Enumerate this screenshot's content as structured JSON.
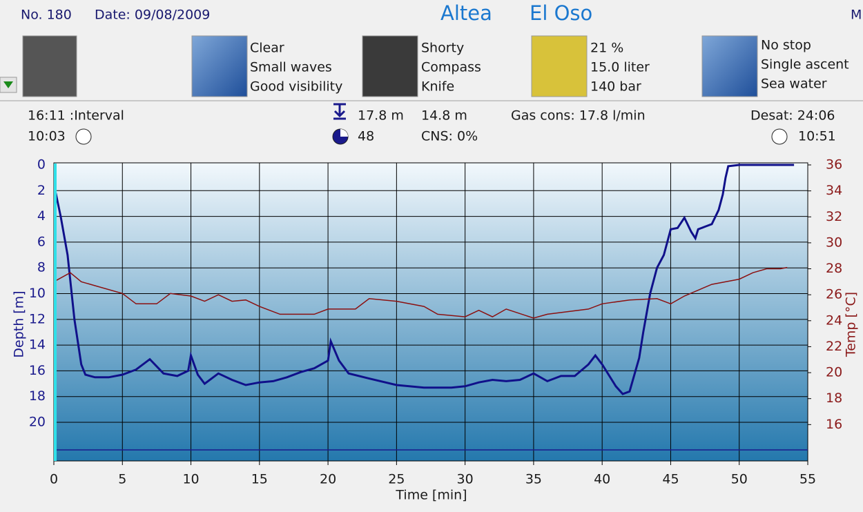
{
  "header": {
    "number": "No. 180",
    "date": "Date: 09/08/2009",
    "site": "Altea",
    "location": "El Oso",
    "cut": "M"
  },
  "equipment": {
    "weather": [
      "Clear",
      "Small waves",
      "Good visibility"
    ],
    "gear": [
      "Shorty",
      "Compass",
      "Knife"
    ],
    "gas": [
      "21 %",
      "15.0 liter",
      "140 bar"
    ],
    "dive_type": [
      "No stop",
      "Single ascent",
      "Sea water"
    ]
  },
  "stats": {
    "interval": "16:11  :Interval",
    "duration": "10:03",
    "max_depth": "17.8 m",
    "avg_depth": "14.8 m",
    "dive_count": "48",
    "cns": "CNS:  0%",
    "gas_cons": "Gas cons: 17.8 l/min",
    "desat": "Desat: 24:06",
    "time": "10:51"
  },
  "chart_data": {
    "type": "line",
    "xlabel": "Time [min]",
    "ylabel": "Depth [m]",
    "y2label": "Temp [°C]",
    "xlim": [
      0,
      55
    ],
    "xticks": [
      0,
      5,
      10,
      15,
      20,
      25,
      30,
      35,
      40,
      45,
      50,
      55
    ],
    "ylim": [
      0,
      23
    ],
    "invert_y": true,
    "yticks": [
      0,
      2,
      4,
      6,
      8,
      10,
      12,
      14,
      16,
      18,
      20
    ],
    "y2lim": [
      13.2,
      36
    ],
    "y2ticks": [
      16,
      18,
      20,
      22,
      24,
      26,
      28,
      30,
      32,
      34,
      36
    ],
    "grid": true,
    "series": [
      {
        "color": "#10108a",
        "x": [
          0.1,
          0.5,
          1.0,
          1.5,
          2.0,
          2.3,
          3,
          4,
          5,
          6,
          7,
          8,
          9,
          9.8,
          10,
          10.5,
          11,
          12,
          13,
          14,
          15,
          16,
          17,
          18,
          19,
          20,
          20.2,
          20.8,
          21.5,
          23,
          25,
          27,
          29,
          30,
          31,
          32,
          33,
          34,
          35,
          36,
          37,
          38,
          39,
          39.5,
          40,
          41,
          41.5,
          42,
          42.7,
          43,
          43.5,
          44,
          44.5,
          45,
          45.5,
          46,
          46.5,
          46.8,
          47,
          47.5,
          48,
          48.5,
          48.8,
          49,
          49.2,
          50,
          53,
          54
        ],
        "values": [
          2,
          4,
          7,
          12,
          15.5,
          16.3,
          16.5,
          16.5,
          16.3,
          15.9,
          15.1,
          16.2,
          16.4,
          16,
          14.8,
          16.3,
          17,
          16.2,
          16.7,
          17.1,
          16.9,
          16.8,
          16.5,
          16.1,
          15.8,
          15.2,
          13.7,
          15.2,
          16.2,
          16.6,
          17.1,
          17.3,
          17.3,
          17.2,
          16.9,
          16.7,
          16.8,
          16.7,
          16.2,
          16.8,
          16.4,
          16.4,
          15.5,
          14.8,
          15.5,
          17.2,
          17.8,
          17.6,
          15,
          13,
          10,
          8,
          7,
          5,
          4.9,
          4.1,
          5.2,
          5.7,
          5,
          4.8,
          4.6,
          3.5,
          2.3,
          1,
          0.1,
          0,
          0,
          0
        ]
      },
      {
        "axis": "y2",
        "color": "#8b1010",
        "x": [
          0,
          1.2,
          2,
          3,
          5,
          6,
          7.5,
          8.5,
          10,
          11,
          12,
          13,
          14,
          15,
          16.5,
          19,
          20,
          22,
          23,
          25,
          27,
          28,
          30,
          31,
          32,
          33,
          35,
          36,
          39,
          40,
          42,
          44,
          45,
          46,
          48,
          50,
          51,
          52,
          53,
          53.5
        ],
        "values": [
          27.0,
          27.7,
          27.0,
          26.7,
          26.1,
          25.3,
          25.3,
          26.1,
          25.9,
          25.5,
          26.0,
          25.5,
          25.6,
          25.1,
          24.5,
          24.5,
          24.9,
          24.9,
          25.7,
          25.5,
          25.1,
          24.5,
          24.3,
          24.8,
          24.3,
          24.9,
          24.2,
          24.5,
          24.9,
          25.3,
          25.6,
          25.7,
          25.3,
          25.9,
          26.8,
          27.2,
          27.7,
          28.0,
          28.0,
          28.1
        ]
      }
    ]
  }
}
